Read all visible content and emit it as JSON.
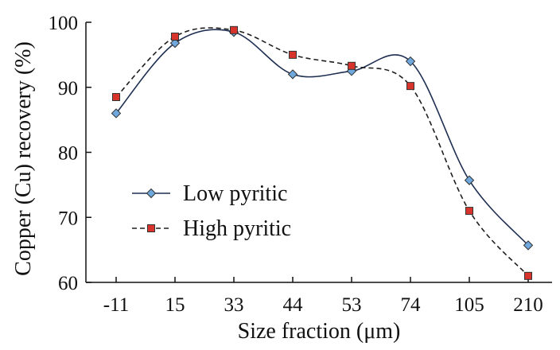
{
  "chart_data": {
    "type": "line",
    "categories": [
      "-11",
      "15",
      "33",
      "44",
      "53",
      "74",
      "105",
      "210"
    ],
    "series": [
      {
        "name": "Low pyritic",
        "values": [
          86.0,
          96.8,
          98.5,
          92.0,
          92.5,
          94.0,
          75.7,
          65.7
        ],
        "color": "#1e2f52",
        "marker_color": "#6fa8dc",
        "line_style": "solid",
        "marker": "diamond"
      },
      {
        "name": "High pyritic",
        "values": [
          88.5,
          97.8,
          98.8,
          95.0,
          93.3,
          90.2,
          71.0,
          61.0
        ],
        "color": "#1e1e1e",
        "marker_color": "#d9342b",
        "line_style": "dashed",
        "marker": "square"
      }
    ],
    "xlabel": "Size fraction (μm)",
    "ylabel": "Copper (Cu) recovery (%)",
    "ylim": [
      60,
      100
    ],
    "yticks": [
      60,
      70,
      80,
      90,
      100
    ],
    "grid": false,
    "legend": "center-left"
  }
}
